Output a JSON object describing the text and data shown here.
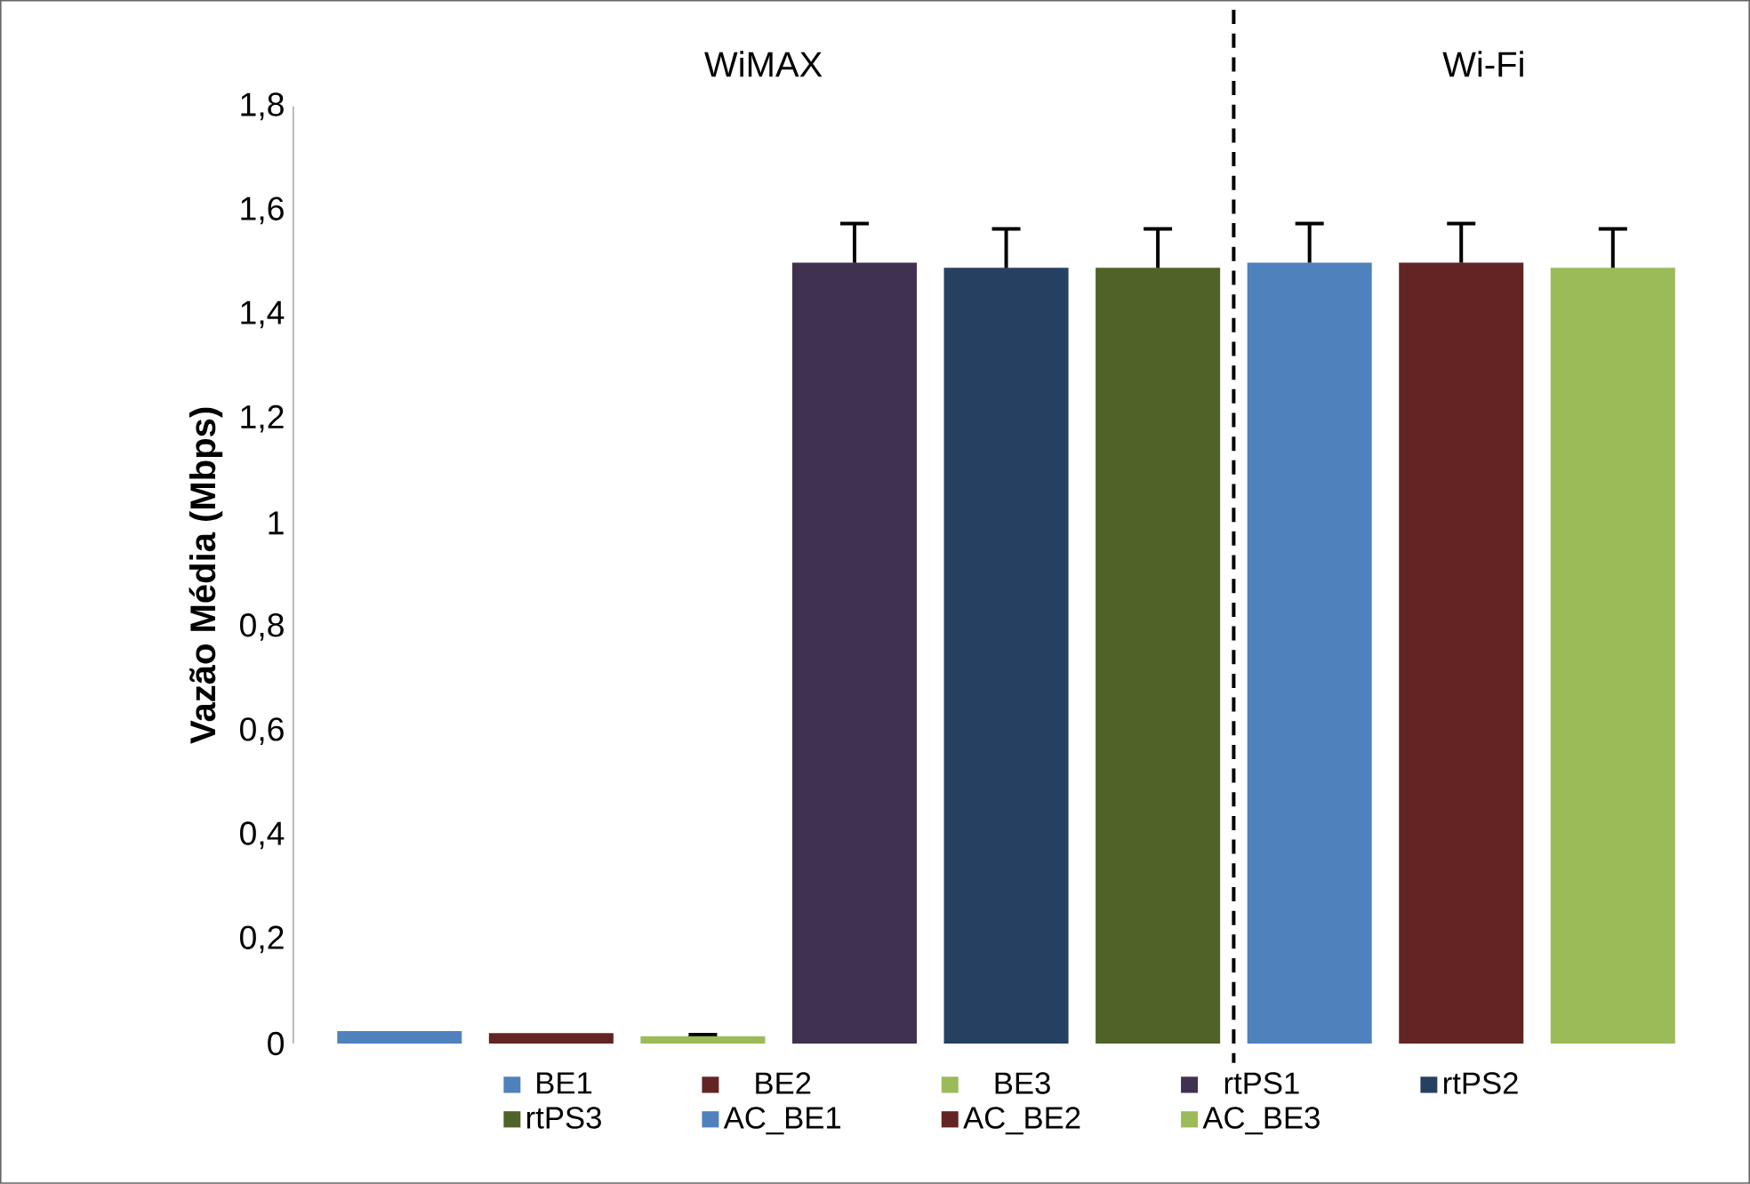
{
  "chart_data": {
    "type": "bar",
    "ylabel": "Vazão Média (Mbps)",
    "categories": [
      null,
      null,
      null,
      null,
      null,
      null,
      null,
      null,
      null
    ],
    "series": [
      {
        "name": "BE1",
        "color": "#4f81bd",
        "values": [
          0.024,
          null,
          null,
          null,
          null,
          null,
          null,
          null,
          null
        ]
      },
      {
        "name": "BE2",
        "color": "#632523",
        "values": [
          null,
          0.02,
          null,
          null,
          null,
          null,
          null,
          null,
          null
        ]
      },
      {
        "name": "BE3",
        "color": "#9bbb59",
        "values": [
          null,
          null,
          0.014,
          null,
          null,
          null,
          null,
          null,
          null
        ],
        "errors": [
          null,
          null,
          0.003,
          null,
          null,
          null,
          null,
          null,
          null
        ]
      },
      {
        "name": "rtPS1",
        "color": "#403151",
        "values": [
          null,
          null,
          null,
          1.5,
          null,
          null,
          null,
          null,
          null
        ],
        "errors": [
          null,
          null,
          null,
          0.075,
          null,
          null,
          null,
          null,
          null
        ]
      },
      {
        "name": "rtPS2",
        "color": "#254061",
        "values": [
          null,
          null,
          null,
          null,
          1.49,
          null,
          null,
          null,
          null
        ],
        "errors": [
          null,
          null,
          null,
          null,
          0.075,
          null,
          null,
          null,
          null
        ]
      },
      {
        "name": "rtPS3",
        "color": "#4f6228",
        "values": [
          null,
          null,
          null,
          null,
          null,
          1.49,
          null,
          null,
          null
        ],
        "errors": [
          null,
          null,
          null,
          null,
          null,
          0.075,
          null,
          null,
          null
        ]
      },
      {
        "name": "AC_BE1",
        "color": "#4f81bd",
        "values": [
          null,
          null,
          null,
          null,
          null,
          null,
          1.5,
          null,
          null
        ],
        "errors": [
          null,
          null,
          null,
          null,
          null,
          null,
          0.075,
          null,
          null
        ]
      },
      {
        "name": "AC_BE2",
        "color": "#632523",
        "values": [
          null,
          null,
          null,
          null,
          null,
          null,
          null,
          1.5,
          null
        ],
        "errors": [
          null,
          null,
          null,
          null,
          null,
          null,
          null,
          0.075,
          null
        ]
      },
      {
        "name": "AC_BE3",
        "color": "#9bbb59",
        "values": [
          null,
          null,
          null,
          null,
          null,
          null,
          null,
          null,
          1.49
        ],
        "errors": [
          null,
          null,
          null,
          null,
          null,
          null,
          null,
          null,
          0.075
        ]
      }
    ],
    "ylim": [
      0,
      1.8
    ],
    "yticks": [
      {
        "value": 0,
        "label": "0"
      },
      {
        "value": 0.2,
        "label": "0,2"
      },
      {
        "value": 0.4,
        "label": "0,4"
      },
      {
        "value": 0.6,
        "label": "0,6"
      },
      {
        "value": 0.8,
        "label": "0,8"
      },
      {
        "value": 1,
        "label": "1"
      },
      {
        "value": 1.2,
        "label": "1,2"
      },
      {
        "value": 1.4,
        "label": "1,4"
      },
      {
        "value": 1.6,
        "label": "1,6"
      },
      {
        "value": 1.8,
        "label": "1,8"
      }
    ],
    "annotations": [
      "WiMAX",
      "Wi-Fi"
    ],
    "stacked": true,
    "grid": false,
    "legend": "bottom"
  }
}
